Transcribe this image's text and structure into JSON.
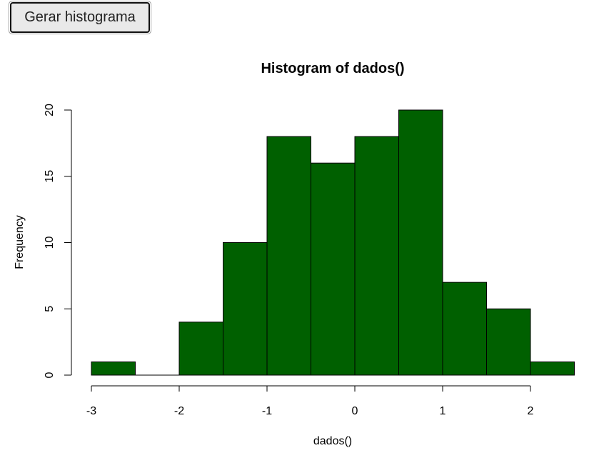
{
  "controls": {
    "generate_button_label": "Gerar histograma"
  },
  "colors": {
    "bar_fill": "#006000",
    "bar_stroke": "#000000",
    "axis": "#000000"
  },
  "chart_data": {
    "type": "bar",
    "title": "Histogram of dados()",
    "xlabel": "dados()",
    "ylabel": "Frequency",
    "bins": [
      {
        "from": -3.0,
        "to": -2.5,
        "count": 1
      },
      {
        "from": -2.5,
        "to": -2.0,
        "count": 0
      },
      {
        "from": -2.0,
        "to": -1.5,
        "count": 4
      },
      {
        "from": -1.5,
        "to": -1.0,
        "count": 10
      },
      {
        "from": -1.0,
        "to": -0.5,
        "count": 18
      },
      {
        "from": -0.5,
        "to": 0.0,
        "count": 16
      },
      {
        "from": 0.0,
        "to": 0.5,
        "count": 18
      },
      {
        "from": 0.5,
        "to": 1.0,
        "count": 20
      },
      {
        "from": 1.0,
        "to": 1.5,
        "count": 7
      },
      {
        "from": 1.5,
        "to": 2.0,
        "count": 5
      },
      {
        "from": 2.0,
        "to": 2.5,
        "count": 1
      }
    ],
    "xlim": [
      -3,
      2.5
    ],
    "ylim": [
      0,
      20
    ],
    "x_ticks": [
      -3,
      -2,
      -1,
      0,
      1,
      2
    ],
    "x_tick_labels": [
      "-3",
      "-2",
      "-1",
      "0",
      "1",
      "2"
    ],
    "y_ticks": [
      0,
      5,
      10,
      15,
      20
    ],
    "y_tick_labels": [
      "0",
      "5",
      "10",
      "15",
      "20"
    ],
    "grid": false,
    "legend": "none"
  }
}
